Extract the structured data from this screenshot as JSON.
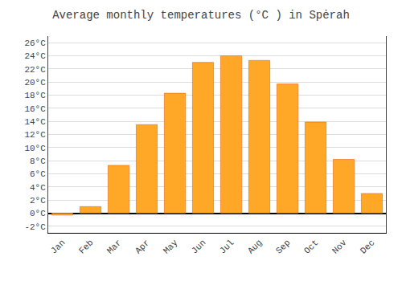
{
  "chart_data": {
    "type": "bar",
    "title": "Average monthly temperatures (°C ) in Spėrah",
    "categories": [
      "Jan",
      "Feb",
      "Mar",
      "Apr",
      "May",
      "Jun",
      "Jul",
      "Aug",
      "Sep",
      "Oct",
      "Nov",
      "Dec"
    ],
    "values": [
      -0.3,
      1.0,
      7.3,
      13.5,
      18.3,
      23.0,
      24.0,
      23.3,
      19.7,
      13.9,
      8.2,
      3.0
    ],
    "color": "#FFA726",
    "ylim": [
      -3,
      27
    ],
    "yticks": [
      {
        "value": -2,
        "label": "-2°C"
      },
      {
        "value": 0,
        "label": "0°C"
      },
      {
        "value": 2,
        "label": "2°C"
      },
      {
        "value": 4,
        "label": "4°C"
      },
      {
        "value": 6,
        "label": "6°C"
      },
      {
        "value": 8,
        "label": "8°C"
      },
      {
        "value": 10,
        "label": "10°C"
      },
      {
        "value": 12,
        "label": "12°C"
      },
      {
        "value": 14,
        "label": "14°C"
      },
      {
        "value": 16,
        "label": "16°C"
      },
      {
        "value": 18,
        "label": "18°C"
      },
      {
        "value": 20,
        "label": "20°C"
      },
      {
        "value": 22,
        "label": "22°C"
      },
      {
        "value": 24,
        "label": "24°C"
      },
      {
        "value": 26,
        "label": "26°C"
      }
    ],
    "grid": true
  }
}
